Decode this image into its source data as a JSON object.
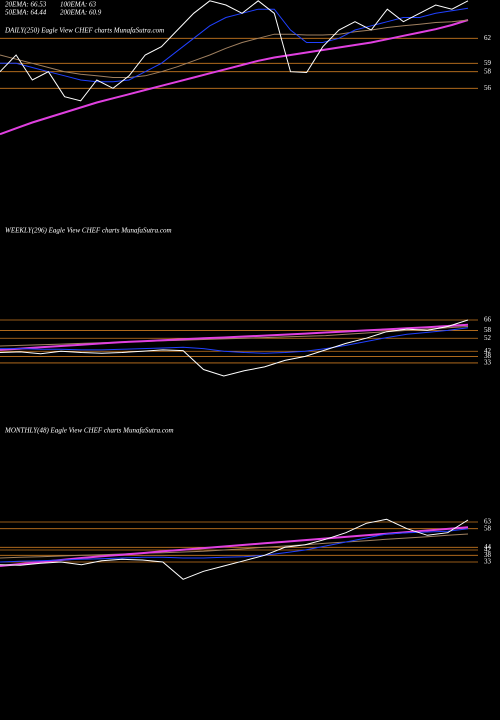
{
  "chart_data": [
    {
      "type": "line",
      "title": "DAILY(250) Eagle  View  CHEF charts MunafaSutra.com",
      "annotations": [
        "20EMA: 66.53",
        "100EMA: 63",
        "50EMA: 64.44",
        "200EMA: 60.9"
      ],
      "ylim": [
        49.8,
        66.6
      ],
      "yticks": [
        62,
        59,
        58,
        56
      ],
      "grid": true,
      "series": [
        {
          "color": "#e040e0",
          "values": [
            50.5,
            51.2,
            51.9,
            52.5,
            53.1,
            53.7,
            54.3,
            54.8,
            55.3,
            55.8,
            56.3,
            56.8,
            57.3,
            57.8,
            58.3,
            58.8,
            59.3,
            59.7,
            60,
            60.3,
            60.6,
            60.9,
            61.2,
            61.5,
            61.9,
            62.3,
            62.7,
            63.1,
            63.6,
            64.2
          ]
        },
        {
          "color": "#a08060",
          "values": [
            60,
            59.5,
            59,
            58.5,
            58,
            57.7,
            57.5,
            57.3,
            57.3,
            57.5,
            58,
            58.6,
            59.3,
            60,
            60.8,
            61.5,
            62,
            62.5,
            62.5,
            62.4,
            62.4,
            62.5,
            62.8,
            63,
            63.3,
            63.5,
            63.7,
            63.9,
            64,
            64.2
          ]
        },
        {
          "color": "#2040ff",
          "values": [
            59,
            59,
            58.5,
            58,
            57.5,
            57,
            56.8,
            56.8,
            57,
            58,
            59,
            60.5,
            62,
            63.5,
            64.5,
            65,
            65.5,
            65.5,
            63,
            61.5,
            61.5,
            62,
            63,
            63.5,
            64,
            64.5,
            64.5,
            65,
            65.3,
            65.6
          ]
        },
        {
          "color": "#ffffff",
          "values": [
            58,
            60,
            57,
            58,
            55,
            54.5,
            57,
            56,
            57.5,
            60,
            61,
            63,
            65,
            66.5,
            66,
            65,
            66.5,
            65,
            58,
            57.9,
            61,
            63,
            64,
            63,
            65.5,
            64,
            65,
            66,
            65.5,
            66.5
          ]
        }
      ]
    },
    {
      "type": "line",
      "title": "WEEKLY(296) Eagle  View  CHEF charts MunafaSutra.com",
      "ylim": [
        19.9,
        73.7
      ],
      "yticks": [
        66,
        58,
        52,
        42,
        38,
        33
      ],
      "grid": true,
      "series": [
        {
          "color": "#a08060",
          "values": [
            46,
            46.5,
            47,
            47.5,
            48,
            48.5,
            49,
            49.5,
            50,
            50.5,
            51,
            51.5,
            52,
            52.5,
            53,
            53.5,
            54,
            55,
            56,
            57,
            58,
            59,
            60,
            61
          ]
        },
        {
          "color": "#e040e0",
          "values": [
            43,
            44,
            45,
            46,
            47,
            48,
            49,
            49.7,
            50.5,
            51.2,
            52,
            52.6,
            53.3,
            54,
            54.8,
            55.6,
            56.4,
            57.2,
            58,
            58.8,
            59.6,
            60.4,
            61.4,
            62.4
          ]
        },
        {
          "color": "#2040ff",
          "values": [
            44,
            44,
            43.5,
            43.5,
            43,
            43,
            43.5,
            44,
            44.5,
            45,
            44,
            42,
            41,
            40.5,
            41,
            42,
            44,
            46.5,
            49.5,
            52.5,
            55,
            56.5,
            58,
            60
          ]
        },
        {
          "color": "#ffffff",
          "values": [
            41,
            41.5,
            40,
            42,
            41,
            40.5,
            41,
            42,
            43,
            42.5,
            28,
            23,
            27,
            30,
            35,
            38,
            43,
            48,
            52,
            57,
            59,
            58,
            61,
            66
          ]
        }
      ]
    },
    {
      "type": "line",
      "title": "MONTHLY(48) Eagle  View  CHEF charts MunafaSutra.com",
      "ylim": [
        12,
        79.5
      ],
      "yticks": [
        63,
        58,
        44,
        42,
        38,
        33
      ],
      "grid": true,
      "series": [
        {
          "color": "#a08060",
          "values": [
            36,
            36.5,
            37,
            37.5,
            38,
            38.5,
            39,
            39.5,
            40,
            40.5,
            41,
            42,
            43,
            44,
            45,
            46,
            47,
            48,
            49,
            50,
            51,
            52,
            53,
            54
          ]
        },
        {
          "color": "#e040e0",
          "values": [
            30,
            31.5,
            33,
            34.5,
            36,
            37.3,
            38.5,
            39.7,
            41,
            42.2,
            43.4,
            44.6,
            45.8,
            47,
            48.2,
            49.4,
            50.6,
            51.8,
            53,
            54.2,
            55.4,
            56.6,
            57.8,
            59
          ]
        },
        {
          "color": "#2040ff",
          "values": [
            33,
            33.5,
            34,
            34.5,
            35,
            35.5,
            36,
            36.5,
            36.5,
            36,
            36,
            36.5,
            37,
            38,
            40,
            42,
            45,
            48,
            51,
            54,
            55,
            55.5,
            56,
            58
          ]
        },
        {
          "color": "#ffffff",
          "values": [
            31,
            30.5,
            32,
            33,
            31,
            34,
            35,
            34.5,
            33,
            20,
            26,
            30,
            34,
            38,
            44,
            46,
            50,
            55,
            62,
            65,
            58,
            53,
            55,
            64.5
          ]
        }
      ]
    }
  ]
}
